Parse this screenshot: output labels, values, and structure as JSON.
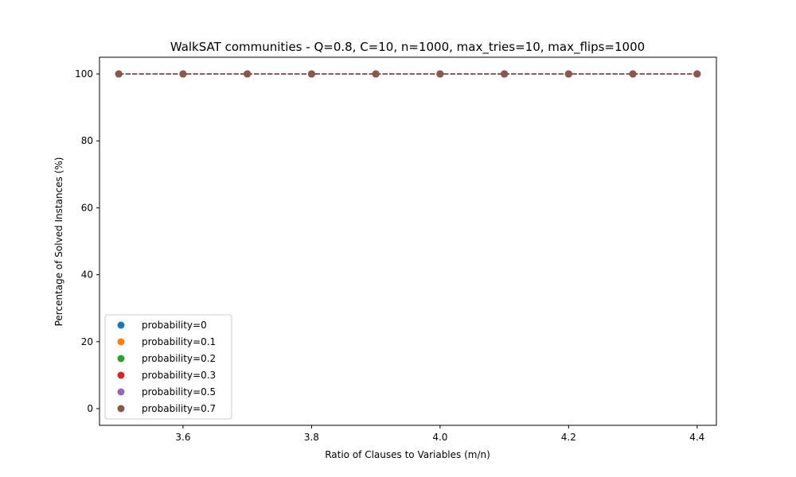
{
  "chart_data": {
    "type": "scatter",
    "title": "WalkSAT communities - Q=0.8, C=10, n=1000, max_tries=10, max_flips=1000",
    "xlabel": "Ratio of Clauses to Variables (m/n)",
    "ylabel": "Percentage of Solved Instances (%)",
    "xlim": [
      3.47,
      4.43
    ],
    "ylim": [
      -5,
      105
    ],
    "xticks": [
      3.6,
      3.8,
      4.0,
      4.2,
      4.4
    ],
    "xtick_labels": [
      "3.6",
      "3.8",
      "4.0",
      "4.2",
      "4.4"
    ],
    "yticks": [
      0,
      20,
      40,
      60,
      80,
      100
    ],
    "ytick_labels": [
      "0",
      "20",
      "40",
      "60",
      "80",
      "100"
    ],
    "grid": false,
    "legend_position": "lower-left",
    "x": [
      3.5,
      3.6,
      3.7,
      3.8,
      3.9,
      4.0,
      4.1,
      4.2,
      4.3,
      4.4
    ],
    "series": [
      {
        "name": "probability=0",
        "color": "#1f77b4",
        "values": [
          100,
          100,
          100,
          100,
          100,
          100,
          100,
          100,
          100,
          100
        ]
      },
      {
        "name": "probability=0.1",
        "color": "#ff7f0e",
        "values": [
          100,
          100,
          100,
          100,
          100,
          100,
          100,
          100,
          100,
          100
        ]
      },
      {
        "name": "probability=0.2",
        "color": "#2ca02c",
        "values": [
          100,
          100,
          100,
          100,
          100,
          100,
          100,
          100,
          100,
          100
        ]
      },
      {
        "name": "probability=0.3",
        "color": "#d62728",
        "values": [
          100,
          100,
          100,
          100,
          100,
          100,
          100,
          100,
          100,
          100
        ]
      },
      {
        "name": "probability=0.5",
        "color": "#9467bd",
        "values": [
          100,
          100,
          100,
          100,
          100,
          100,
          100,
          100,
          100,
          100
        ]
      },
      {
        "name": "probability=0.7",
        "color": "#8c564b",
        "values": [
          100,
          100,
          100,
          100,
          100,
          100,
          100,
          100,
          100,
          100
        ]
      }
    ]
  }
}
